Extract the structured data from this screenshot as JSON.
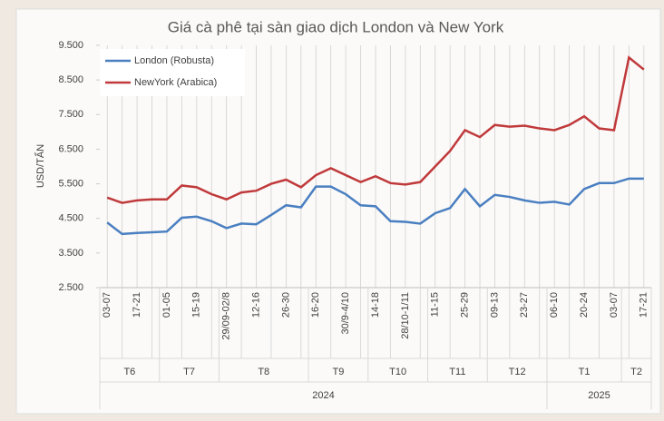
{
  "chart_data": {
    "type": "line",
    "title": "Giá cà phê tại sàn giao dịch London và New York",
    "y_label": "USD/TẤN",
    "categories": [
      "03-07",
      null,
      "17-21",
      null,
      "01-05",
      null,
      "15-19",
      null,
      "29/09-02/8",
      null,
      "12-16",
      null,
      "26-30",
      null,
      "16-20",
      null,
      "30/9-4/10",
      null,
      "14-18",
      null,
      "28/10-1/11",
      null,
      "11-15",
      null,
      "25-29",
      null,
      "09-13",
      null,
      "23-27",
      null,
      "06-10",
      null,
      "20-24",
      null,
      "03-07",
      null,
      "17-21"
    ],
    "x_groups": [
      {
        "label": "T6",
        "count": 4
      },
      {
        "label": "T7",
        "count": 4
      },
      {
        "label": "T8",
        "count": 6
      },
      {
        "label": "T9",
        "count": 4
      },
      {
        "label": "T10",
        "count": 4
      },
      {
        "label": "T11",
        "count": 4
      },
      {
        "label": "T12",
        "count": 4
      },
      {
        "label": "T1",
        "count": 5
      },
      {
        "label": "T2",
        "count": 2
      }
    ],
    "x_years": [
      {
        "label": "2024",
        "count": 30
      },
      {
        "label": "2025",
        "count": 7
      }
    ],
    "series": [
      {
        "name": "London (Robusta)",
        "color": "#4a7fc1",
        "values": [
          4380,
          4050,
          4080,
          4100,
          4120,
          4520,
          4550,
          4420,
          4220,
          4350,
          4330,
          4600,
          4880,
          4820,
          5420,
          5420,
          5200,
          4880,
          4850,
          4420,
          4400,
          4350,
          4650,
          4800,
          5350,
          4850,
          5180,
          5120,
          5020,
          4950,
          4980,
          4900,
          5350,
          5520,
          5520,
          5650,
          5650
        ]
      },
      {
        "name": "NewYork (Arabica)",
        "color": "#c0393b",
        "values": [
          5100,
          4950,
          5020,
          5050,
          5050,
          5450,
          5400,
          5200,
          5050,
          5250,
          5300,
          5500,
          5620,
          5400,
          5750,
          5950,
          5750,
          5550,
          5720,
          5520,
          5480,
          5550,
          6000,
          6450,
          7050,
          6850,
          7200,
          7150,
          7180,
          7100,
          7050,
          7200,
          7450,
          7100,
          7050,
          9150,
          8800
        ]
      }
    ],
    "ylim": [
      2500,
      9500
    ],
    "yticks": [
      {
        "value": 2500,
        "label": "2.500"
      },
      {
        "value": 3500,
        "label": "3.500"
      },
      {
        "value": 4500,
        "label": "4.500"
      },
      {
        "value": 5500,
        "label": "5.500"
      },
      {
        "value": 6500,
        "label": "6.500"
      },
      {
        "value": 7500,
        "label": "7.500"
      },
      {
        "value": 8500,
        "label": "8.500"
      },
      {
        "value": 9500,
        "label": "9.500"
      }
    ],
    "legend": "upper left"
  }
}
